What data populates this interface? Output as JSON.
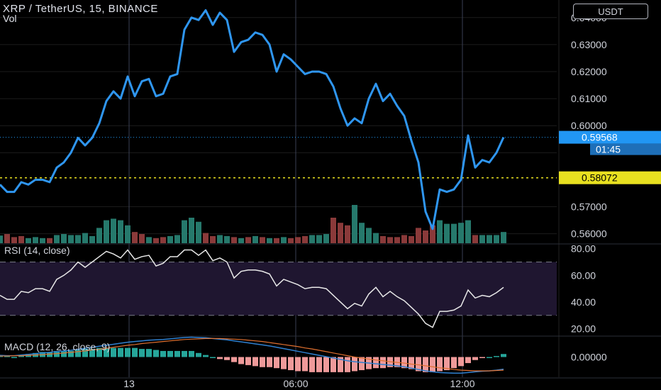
{
  "header": {
    "symbol_title": "XRP / TetherUS, 15, BINANCE",
    "vol_label": "Vol",
    "currency_button": "USDT"
  },
  "colors": {
    "background": "#000000",
    "price_line": "#2f96f0",
    "last_price_tag": "#2196f3",
    "alert_line": "#e8e020",
    "volume_up": "#26796c",
    "volume_down": "#8a3a3a",
    "rsi_line": "#e8e8e8",
    "rsi_band": "#1f1630",
    "macd_line": "#2f80d0",
    "signal_line": "#e07030",
    "hist_up": "#26a69a",
    "hist_down": "#ef9a9a"
  },
  "chart_data": [
    {
      "type": "line",
      "name": "price",
      "ylim": [
        0.5565,
        0.6465
      ],
      "y_ticks": [
        "0.64000",
        "0.63000",
        "0.62000",
        "0.61000",
        "0.60000",
        "0.57000",
        "0.56000"
      ],
      "x_ticks": [
        "13",
        "06:00",
        "12:00"
      ],
      "last_price_label": "0.59568",
      "countdown_label": "01:45",
      "alert_label": "0.58072",
      "alert_value": 0.58072,
      "close": [
        0.5782,
        0.5755,
        0.5755,
        0.5791,
        0.5782,
        0.58,
        0.58,
        0.5791,
        0.5845,
        0.5864,
        0.59,
        0.5955,
        0.5927,
        0.5955,
        0.6009,
        0.6091,
        0.6127,
        0.61,
        0.6182,
        0.6109,
        0.6164,
        0.6173,
        0.6109,
        0.6118,
        0.6182,
        0.6191,
        0.6355,
        0.64,
        0.6391,
        0.6427,
        0.6373,
        0.6418,
        0.6391,
        0.6273,
        0.6309,
        0.6318,
        0.6345,
        0.6336,
        0.63,
        0.62,
        0.6264,
        0.6245,
        0.6218,
        0.6191,
        0.62,
        0.62,
        0.6191,
        0.6145,
        0.6064,
        0.6,
        0.6027,
        0.6009,
        0.61,
        0.6155,
        0.6091,
        0.6118,
        0.6073,
        0.6036,
        0.5945,
        0.5864,
        0.5682,
        0.5618,
        0.5764,
        0.5755,
        0.5764,
        0.58,
        0.5964,
        0.5845,
        0.5873,
        0.5864,
        0.59,
        0.5957
      ],
      "volume_dir": [
        1,
        0,
        0,
        0,
        1,
        1,
        1,
        0,
        1,
        1,
        1,
        1,
        1,
        1,
        1,
        1,
        1,
        1,
        1,
        0,
        0,
        1,
        0,
        0,
        1,
        1,
        1,
        1,
        1,
        0,
        0,
        1,
        1,
        0,
        1,
        0,
        1,
        0,
        1,
        0,
        1,
        0,
        0,
        0,
        1,
        1,
        1,
        0,
        0,
        0,
        1,
        1,
        1,
        1,
        0,
        0,
        0,
        0,
        0,
        0,
        0,
        0,
        1,
        1,
        1,
        1,
        1,
        0,
        1,
        1,
        1,
        1
      ],
      "volume": [
        1.5,
        1.8,
        1.2,
        1.4,
        1.0,
        1.2,
        1.0,
        1.0,
        1.6,
        1.8,
        1.6,
        1.6,
        2.0,
        1.4,
        3.0,
        4.5,
        4.8,
        4.5,
        3.5,
        2.2,
        1.8,
        1.2,
        1.0,
        1.2,
        1.4,
        1.6,
        4.5,
        5.0,
        4.2,
        2.0,
        1.4,
        1.6,
        1.4,
        1.2,
        1.0,
        1.2,
        1.4,
        1.2,
        1.0,
        1.0,
        1.2,
        1.0,
        1.2,
        1.4,
        1.6,
        1.6,
        1.8,
        5.0,
        4.0,
        3.5,
        7.5,
        4.0,
        3.0,
        2.0,
        1.4,
        1.2,
        1.2,
        1.6,
        1.4,
        3.0,
        2.5,
        3.5,
        4.5,
        3.8,
        3.8,
        4.0,
        4.5,
        1.6,
        1.6,
        1.6,
        1.6,
        2.2
      ]
    },
    {
      "type": "line",
      "name": "RSI",
      "label": "RSI (14, close)",
      "ylim": [
        15,
        83
      ],
      "y_ticks": [
        "80.00",
        "60.00",
        "40.00",
        "20.00"
      ],
      "band": [
        30,
        70
      ],
      "values": [
        45,
        42,
        42,
        48,
        47,
        50,
        50,
        48,
        57,
        60,
        64,
        70,
        66,
        70,
        74,
        78,
        76,
        73,
        79,
        72,
        74,
        75,
        67,
        69,
        74,
        74,
        79,
        79,
        75,
        79,
        71,
        73,
        70,
        58,
        63,
        64,
        64,
        63,
        61,
        52,
        57,
        55,
        53,
        50,
        51,
        51,
        50,
        45,
        40,
        35,
        39,
        37,
        46,
        51,
        44,
        48,
        44,
        41,
        36,
        31,
        24,
        21,
        33,
        33,
        34,
        37,
        49,
        43,
        45,
        44,
        47,
        51
      ]
    },
    {
      "type": "bar",
      "name": "MACD",
      "label": "MACD (12, 26, close, 9)",
      "ylim": [
        -0.006,
        0.006
      ],
      "y_ticks": [
        "0.00000"
      ],
      "macd": [
        0.0005,
        0.0004,
        0.0004,
        0.0006,
        0.0008,
        0.001,
        0.0012,
        0.0014,
        0.0016,
        0.0018,
        0.002,
        0.0023,
        0.0026,
        0.0029,
        0.0032,
        0.0035,
        0.0038,
        0.0041,
        0.0044,
        0.0046,
        0.0048,
        0.005,
        0.0051,
        0.0052,
        0.0054,
        0.0056,
        0.0058,
        0.0059,
        0.0058,
        0.0057,
        0.0055,
        0.0053,
        0.0051,
        0.0048,
        0.0045,
        0.0042,
        0.0039,
        0.0036,
        0.0033,
        0.0029,
        0.0025,
        0.0021,
        0.0017,
        0.0013,
        0.0009,
        0.0005,
        0.0001,
        -0.0003,
        -0.0007,
        -0.0011,
        -0.0014,
        -0.0016,
        -0.0018,
        -0.002,
        -0.0022,
        -0.0024,
        -0.0026,
        -0.0029,
        -0.0033,
        -0.0037,
        -0.0041,
        -0.0044,
        -0.0046,
        -0.0047,
        -0.0048,
        -0.0048,
        -0.0046,
        -0.0044,
        -0.0042,
        -0.0041,
        -0.0039,
        -0.0036
      ],
      "signal": [
        0.0003,
        0.0003,
        0.0004,
        0.0004,
        0.0005,
        0.0006,
        0.0007,
        0.0009,
        0.001,
        0.0012,
        0.0014,
        0.0016,
        0.0018,
        0.0021,
        0.0023,
        0.0026,
        0.0029,
        0.0032,
        0.0035,
        0.0037,
        0.004,
        0.0042,
        0.0044,
        0.0046,
        0.0048,
        0.005,
        0.0052,
        0.0053,
        0.0054,
        0.0055,
        0.0055,
        0.0055,
        0.0054,
        0.0053,
        0.0052,
        0.005,
        0.0048,
        0.0046,
        0.0043,
        0.004,
        0.0037,
        0.0034,
        0.0031,
        0.0027,
        0.0024,
        0.002,
        0.0016,
        0.0012,
        0.0008,
        0.0004,
        0.0,
        -0.0003,
        -0.0006,
        -0.0009,
        -0.0011,
        -0.0014,
        -0.0016,
        -0.0018,
        -0.0021,
        -0.0023,
        -0.0026,
        -0.0029,
        -0.0032,
        -0.0034,
        -0.0037,
        -0.0039,
        -0.004,
        -0.0041,
        -0.0041,
        -0.0041,
        -0.004,
        -0.0039
      ]
    }
  ]
}
